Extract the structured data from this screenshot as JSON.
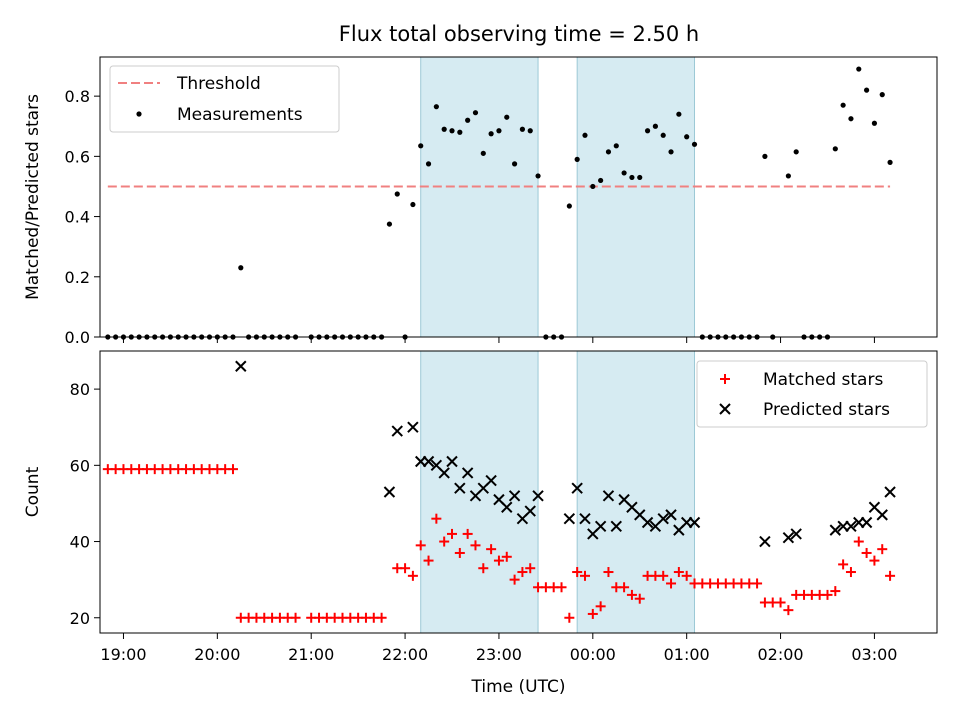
{
  "figure": {
    "title": "Flux total observing time = 2.50 h"
  },
  "chart_data": [
    {
      "type": "scatter",
      "ylabel": "Matched/Predicted stars",
      "xlabel": "",
      "xlim": [
        "18:45",
        "03:40"
      ],
      "ylim": [
        0.0,
        0.93
      ],
      "yticks": [
        0.0,
        0.2,
        0.4,
        0.6,
        0.8
      ],
      "ytick_labels": [
        "0.0",
        "0.2",
        "0.4",
        "0.6",
        "0.8"
      ],
      "grid": false,
      "legend": {
        "placement": "top-left",
        "entries": [
          "Threshold",
          "Measurements"
        ]
      },
      "shaded_intervals": [
        [
          "22:10",
          "23:25"
        ],
        [
          "23:50",
          "01:05"
        ]
      ],
      "threshold": {
        "name": "Threshold",
        "value": 0.5,
        "x_range": [
          "18:50",
          "03:10"
        ],
        "color": "#f08080",
        "style": "dashed"
      },
      "series": [
        {
          "name": "Measurements",
          "marker": "dot",
          "color": "#000000",
          "points": [
            [
              "18:50",
              0
            ],
            [
              "18:55",
              0
            ],
            [
              "19:00",
              0
            ],
            [
              "19:05",
              0
            ],
            [
              "19:10",
              0
            ],
            [
              "19:15",
              0
            ],
            [
              "19:20",
              0
            ],
            [
              "19:25",
              0
            ],
            [
              "19:30",
              0
            ],
            [
              "19:35",
              0
            ],
            [
              "19:40",
              0
            ],
            [
              "19:45",
              0
            ],
            [
              "19:50",
              0
            ],
            [
              "19:55",
              0
            ],
            [
              "20:00",
              0
            ],
            [
              "20:05",
              0
            ],
            [
              "20:10",
              0
            ],
            [
              "20:15",
              0.23
            ],
            [
              "20:20",
              0
            ],
            [
              "20:25",
              0
            ],
            [
              "20:30",
              0
            ],
            [
              "20:35",
              0
            ],
            [
              "20:40",
              0
            ],
            [
              "20:45",
              0
            ],
            [
              "20:50",
              0
            ],
            [
              "21:00",
              0
            ],
            [
              "21:05",
              0
            ],
            [
              "21:10",
              0
            ],
            [
              "21:15",
              0
            ],
            [
              "21:20",
              0
            ],
            [
              "21:25",
              0
            ],
            [
              "21:30",
              0
            ],
            [
              "21:35",
              0
            ],
            [
              "21:40",
              0
            ],
            [
              "21:45",
              0
            ],
            [
              "21:50",
              0.375
            ],
            [
              "21:55",
              0.475
            ],
            [
              "22:00",
              0
            ],
            [
              "22:05",
              0.44
            ],
            [
              "22:10",
              0.635
            ],
            [
              "22:15",
              0.575
            ],
            [
              "22:20",
              0.765
            ],
            [
              "22:25",
              0.69
            ],
            [
              "22:30",
              0.685
            ],
            [
              "22:35",
              0.68
            ],
            [
              "22:40",
              0.72
            ],
            [
              "22:45",
              0.745
            ],
            [
              "22:50",
              0.61
            ],
            [
              "22:55",
              0.675
            ],
            [
              "23:00",
              0.685
            ],
            [
              "23:05",
              0.73
            ],
            [
              "23:10",
              0.575
            ],
            [
              "23:15",
              0.69
            ],
            [
              "23:20",
              0.685
            ],
            [
              "23:25",
              0.535
            ],
            [
              "23:30",
              0
            ],
            [
              "23:35",
              0
            ],
            [
              "23:40",
              0
            ],
            [
              "23:45",
              0.435
            ],
            [
              "23:50",
              0.59
            ],
            [
              "23:55",
              0.67
            ],
            [
              "00:00",
              0.5
            ],
            [
              "00:05",
              0.52
            ],
            [
              "00:10",
              0.615
            ],
            [
              "00:15",
              0.635
            ],
            [
              "00:20",
              0.545
            ],
            [
              "00:25",
              0.53
            ],
            [
              "00:30",
              0.53
            ],
            [
              "00:35",
              0.685
            ],
            [
              "00:40",
              0.7
            ],
            [
              "00:45",
              0.67
            ],
            [
              "00:50",
              0.615
            ],
            [
              "00:55",
              0.74
            ],
            [
              "01:00",
              0.665
            ],
            [
              "01:05",
              0.64
            ],
            [
              "01:10",
              0
            ],
            [
              "01:15",
              0
            ],
            [
              "01:20",
              0
            ],
            [
              "01:25",
              0
            ],
            [
              "01:30",
              0
            ],
            [
              "01:35",
              0
            ],
            [
              "01:40",
              0
            ],
            [
              "01:45",
              0
            ],
            [
              "01:50",
              0.6
            ],
            [
              "01:55",
              0
            ],
            [
              "02:05",
              0.535
            ],
            [
              "02:10",
              0.615
            ],
            [
              "02:15",
              0
            ],
            [
              "02:20",
              0
            ],
            [
              "02:25",
              0
            ],
            [
              "02:30",
              0
            ],
            [
              "02:35",
              0.625
            ],
            [
              "02:40",
              0.77
            ],
            [
              "02:45",
              0.725
            ],
            [
              "02:50",
              0.89
            ],
            [
              "02:55",
              0.82
            ],
            [
              "03:00",
              0.71
            ],
            [
              "03:05",
              0.805
            ],
            [
              "03:10",
              0.58
            ]
          ]
        }
      ]
    },
    {
      "type": "scatter",
      "ylabel": "Count",
      "xlabel": "Time (UTC)",
      "xlim": [
        "18:45",
        "03:40"
      ],
      "ylim": [
        16,
        90
      ],
      "yticks": [
        20,
        40,
        60,
        80
      ],
      "ytick_labels": [
        "20",
        "40",
        "60",
        "80"
      ],
      "xticks": [
        "19:00",
        "20:00",
        "21:00",
        "22:00",
        "23:00",
        "00:00",
        "01:00",
        "02:00",
        "03:00"
      ],
      "xtick_labels": [
        "19:00",
        "20:00",
        "21:00",
        "22:00",
        "23:00",
        "00:00",
        "01:00",
        "02:00",
        "03:00"
      ],
      "grid": false,
      "legend": {
        "placement": "top-right",
        "entries": [
          "Matched stars",
          "Predicted stars"
        ]
      },
      "shaded_intervals": [
        [
          "22:10",
          "23:25"
        ],
        [
          "23:50",
          "01:05"
        ]
      ],
      "series": [
        {
          "name": "Matched stars",
          "marker": "plus",
          "color": "#ff0000",
          "points": [
            [
              "18:50",
              59
            ],
            [
              "18:55",
              59
            ],
            [
              "19:00",
              59
            ],
            [
              "19:05",
              59
            ],
            [
              "19:10",
              59
            ],
            [
              "19:15",
              59
            ],
            [
              "19:20",
              59
            ],
            [
              "19:25",
              59
            ],
            [
              "19:30",
              59
            ],
            [
              "19:35",
              59
            ],
            [
              "19:40",
              59
            ],
            [
              "19:45",
              59
            ],
            [
              "19:50",
              59
            ],
            [
              "19:55",
              59
            ],
            [
              "20:00",
              59
            ],
            [
              "20:05",
              59
            ],
            [
              "20:10",
              59
            ],
            [
              "20:15",
              20
            ],
            [
              "20:20",
              20
            ],
            [
              "20:25",
              20
            ],
            [
              "20:30",
              20
            ],
            [
              "20:35",
              20
            ],
            [
              "20:40",
              20
            ],
            [
              "20:45",
              20
            ],
            [
              "20:50",
              20
            ],
            [
              "21:00",
              20
            ],
            [
              "21:05",
              20
            ],
            [
              "21:10",
              20
            ],
            [
              "21:15",
              20
            ],
            [
              "21:20",
              20
            ],
            [
              "21:25",
              20
            ],
            [
              "21:30",
              20
            ],
            [
              "21:35",
              20
            ],
            [
              "21:40",
              20
            ],
            [
              "21:45",
              20
            ],
            [
              "21:55",
              33
            ],
            [
              "22:00",
              33
            ],
            [
              "22:05",
              31
            ],
            [
              "22:10",
              39
            ],
            [
              "22:15",
              35
            ],
            [
              "22:20",
              46
            ],
            [
              "22:25",
              40
            ],
            [
              "22:30",
              42
            ],
            [
              "22:35",
              37
            ],
            [
              "22:40",
              42
            ],
            [
              "22:45",
              39
            ],
            [
              "22:50",
              33
            ],
            [
              "22:55",
              38
            ],
            [
              "23:00",
              35
            ],
            [
              "23:05",
              36
            ],
            [
              "23:10",
              30
            ],
            [
              "23:15",
              32
            ],
            [
              "23:20",
              33
            ],
            [
              "23:25",
              28
            ],
            [
              "23:30",
              28
            ],
            [
              "23:35",
              28
            ],
            [
              "23:40",
              28
            ],
            [
              "23:45",
              20
            ],
            [
              "23:50",
              32
            ],
            [
              "23:55",
              31
            ],
            [
              "00:00",
              21
            ],
            [
              "00:05",
              23
            ],
            [
              "00:10",
              32
            ],
            [
              "00:15",
              28
            ],
            [
              "00:20",
              28
            ],
            [
              "00:25",
              26
            ],
            [
              "00:30",
              25
            ],
            [
              "00:35",
              31
            ],
            [
              "00:40",
              31
            ],
            [
              "00:45",
              31
            ],
            [
              "00:50",
              29
            ],
            [
              "00:55",
              32
            ],
            [
              "01:00",
              31
            ],
            [
              "01:05",
              29
            ],
            [
              "01:10",
              29
            ],
            [
              "01:15",
              29
            ],
            [
              "01:20",
              29
            ],
            [
              "01:25",
              29
            ],
            [
              "01:30",
              29
            ],
            [
              "01:35",
              29
            ],
            [
              "01:40",
              29
            ],
            [
              "01:45",
              29
            ],
            [
              "01:50",
              24
            ],
            [
              "01:55",
              24
            ],
            [
              "02:00",
              24
            ],
            [
              "02:05",
              22
            ],
            [
              "02:10",
              26
            ],
            [
              "02:15",
              26
            ],
            [
              "02:20",
              26
            ],
            [
              "02:25",
              26
            ],
            [
              "02:30",
              26
            ],
            [
              "02:35",
              27
            ],
            [
              "02:40",
              34
            ],
            [
              "02:45",
              32
            ],
            [
              "02:50",
              40
            ],
            [
              "02:55",
              37
            ],
            [
              "03:00",
              35
            ],
            [
              "03:05",
              38
            ],
            [
              "03:10",
              31
            ]
          ]
        },
        {
          "name": "Predicted stars",
          "marker": "x",
          "color": "#000000",
          "points": [
            [
              "20:15",
              86
            ],
            [
              "21:50",
              53
            ],
            [
              "21:55",
              69
            ],
            [
              "22:05",
              70
            ],
            [
              "22:10",
              61
            ],
            [
              "22:15",
              61
            ],
            [
              "22:20",
              60
            ],
            [
              "22:25",
              58
            ],
            [
              "22:30",
              61
            ],
            [
              "22:35",
              54
            ],
            [
              "22:40",
              58
            ],
            [
              "22:45",
              52
            ],
            [
              "22:50",
              54
            ],
            [
              "22:55",
              56
            ],
            [
              "23:00",
              51
            ],
            [
              "23:05",
              49
            ],
            [
              "23:10",
              52
            ],
            [
              "23:15",
              46
            ],
            [
              "23:20",
              48
            ],
            [
              "23:25",
              52
            ],
            [
              "23:45",
              46
            ],
            [
              "23:50",
              54
            ],
            [
              "23:55",
              46
            ],
            [
              "00:00",
              42
            ],
            [
              "00:05",
              44
            ],
            [
              "00:10",
              52
            ],
            [
              "00:15",
              44
            ],
            [
              "00:20",
              51
            ],
            [
              "00:25",
              49
            ],
            [
              "00:30",
              47
            ],
            [
              "00:35",
              45
            ],
            [
              "00:40",
              44
            ],
            [
              "00:45",
              46
            ],
            [
              "00:50",
              47
            ],
            [
              "00:55",
              43
            ],
            [
              "01:00",
              45
            ],
            [
              "01:05",
              45
            ],
            [
              "01:50",
              40
            ],
            [
              "02:05",
              41
            ],
            [
              "02:10",
              42
            ],
            [
              "02:35",
              43
            ],
            [
              "02:40",
              44
            ],
            [
              "02:45",
              44
            ],
            [
              "02:50",
              45
            ],
            [
              "02:55",
              45
            ],
            [
              "03:00",
              49
            ],
            [
              "03:05",
              47
            ],
            [
              "03:10",
              53
            ]
          ]
        }
      ]
    }
  ]
}
